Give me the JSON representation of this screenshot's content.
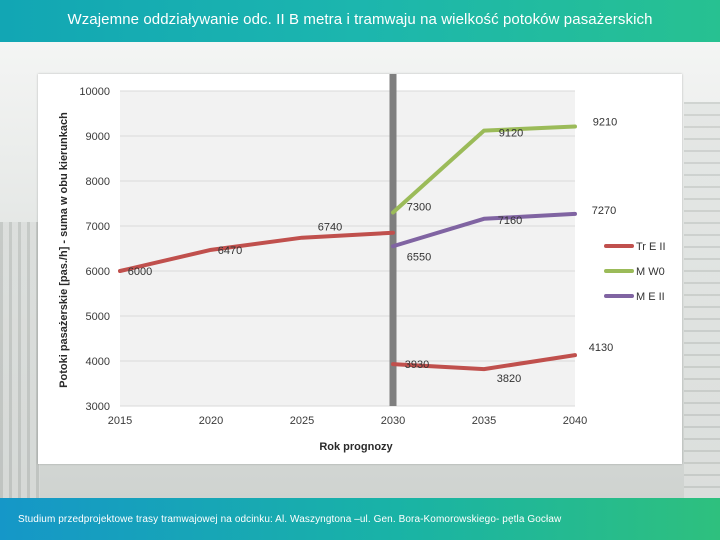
{
  "header": {
    "title": "Wzajemne oddziaływanie odc. II B metra i tramwaju na wielkość potoków pasażerskich"
  },
  "footer": {
    "text": "Studium przedprojektowe trasy tramwajowej na odcinku: Al. Waszyngtona –ul. Gen. Bora-Komorowskiego- pętla Gocław"
  },
  "chart_data": {
    "type": "line",
    "title": "",
    "xlabel": "Rok prognozy",
    "ylabel": "Potoki pasażerskie [pas./h] - suma w obu kierunkach",
    "x_ticks": [
      "2015",
      "2020",
      "2025",
      "2030",
      "2035",
      "2040"
    ],
    "y_ticks": [
      "10000",
      "9000",
      "8000",
      "7000",
      "6000",
      "5000",
      "4000",
      "3000"
    ],
    "xlim": [
      2015,
      2040
    ],
    "ylim": [
      3000,
      10000
    ],
    "grid": true,
    "legend_position": "right",
    "reference_line": {
      "x": 2030,
      "color": "#7f7f7f"
    },
    "series": [
      {
        "name": "Tr E II",
        "color": "#c0504d",
        "points": [
          [
            2015,
            6000
          ],
          [
            2020,
            6470
          ],
          [
            2025,
            6740
          ],
          [
            2030,
            6850
          ]
        ],
        "labels": [
          {
            "x": 2015,
            "y": 6000,
            "text": "6000"
          },
          {
            "x": 2020,
            "y": 6470,
            "text": "6470"
          },
          {
            "x": 2025,
            "y": 6740,
            "text": "6740"
          }
        ]
      },
      {
        "name": "",
        "color": "#c0504d",
        "points": [
          [
            2030,
            3930
          ],
          [
            2035,
            3820
          ],
          [
            2040,
            4130
          ]
        ],
        "labels": [
          {
            "x": 2030,
            "y": 3930,
            "text": "3930"
          },
          {
            "x": 2035,
            "y": 3820,
            "text": "3820"
          },
          {
            "x": 2040,
            "y": 4130,
            "text": "4130"
          }
        ]
      },
      {
        "name": "M W0",
        "color": "#9bbb59",
        "points": [
          [
            2030,
            7300
          ],
          [
            2035,
            9120
          ],
          [
            2040,
            9210
          ]
        ],
        "labels": [
          {
            "x": 2030,
            "y": 7300,
            "text": "7300"
          },
          {
            "x": 2035,
            "y": 9120,
            "text": "9120"
          },
          {
            "x": 2040,
            "y": 9210,
            "text": "9210"
          }
        ]
      },
      {
        "name": "M E II",
        "color": "#8064a2",
        "points": [
          [
            2030,
            6550
          ],
          [
            2035,
            7160
          ],
          [
            2040,
            7270
          ]
        ],
        "labels": [
          {
            "x": 2030,
            "y": 6550,
            "text": "6550"
          },
          {
            "x": 2035,
            "y": 7160,
            "text": "7160"
          },
          {
            "x": 2040,
            "y": 7270,
            "text": "7270"
          }
        ]
      }
    ],
    "legend": [
      {
        "name": "Tr E II",
        "color": "#c0504d"
      },
      {
        "name": "M W0",
        "color": "#9bbb59"
      },
      {
        "name": "M E II",
        "color": "#8064a2"
      }
    ]
  }
}
